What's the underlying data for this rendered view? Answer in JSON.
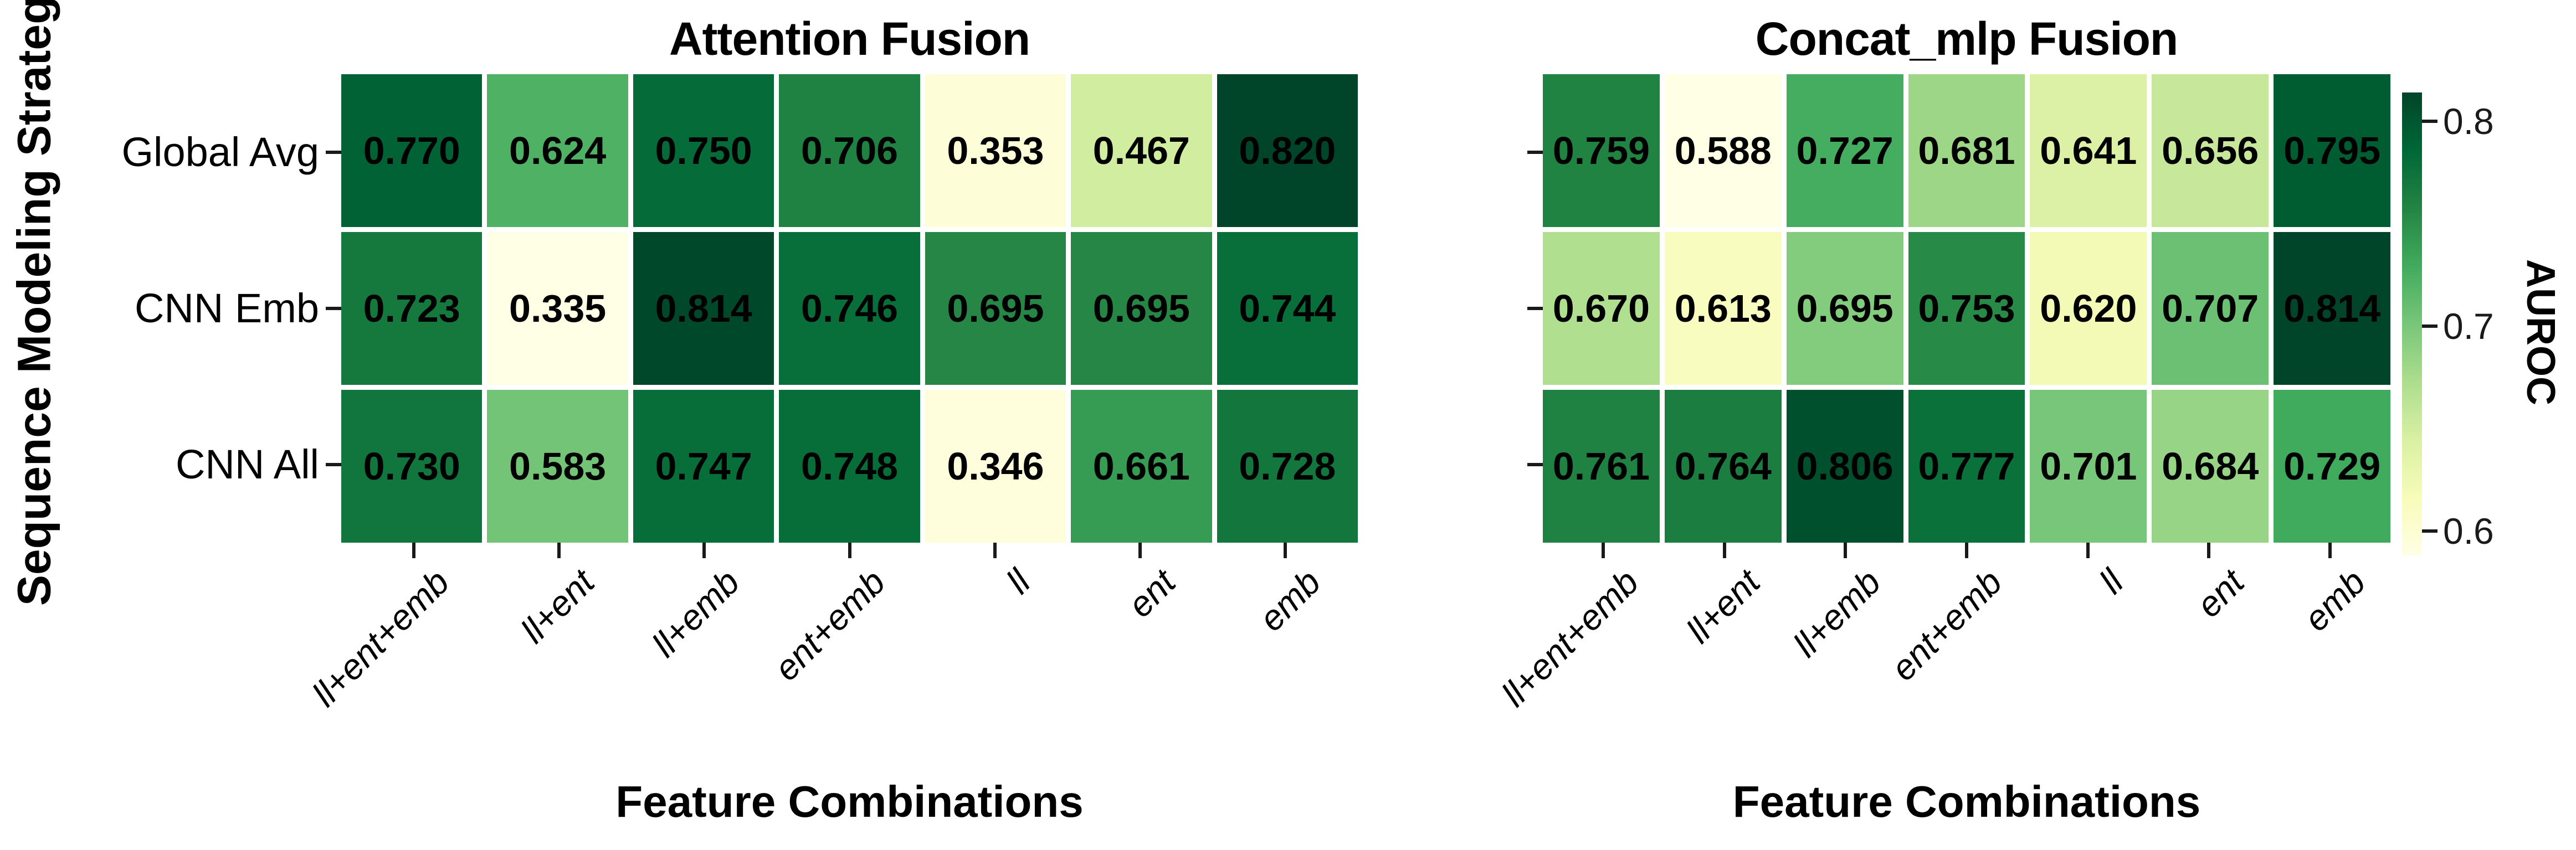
{
  "figure": {
    "ylabel": "Sequence Modeling Strategy",
    "colorbar": {
      "label": "AUROC",
      "ticks": [
        0.8,
        0.7,
        0.6
      ]
    }
  },
  "chart_data": [
    {
      "type": "heatmap",
      "title": "Attention Fusion",
      "xlabel": "Feature Combinations",
      "ylabel": "Sequence Modeling Strategy",
      "rows": [
        "Global Avg",
        "CNN Emb",
        "CNN All"
      ],
      "columns": [
        "ll+ent+emb",
        "ll+ent",
        "ll+emb",
        "ent+emb",
        "ll",
        "ent",
        "emb"
      ],
      "values": [
        [
          0.77,
          0.624,
          0.75,
          0.706,
          0.353,
          0.467,
          0.82
        ],
        [
          0.723,
          0.335,
          0.814,
          0.746,
          0.695,
          0.695,
          0.744
        ],
        [
          0.73,
          0.583,
          0.747,
          0.748,
          0.346,
          0.661,
          0.728
        ]
      ],
      "value_format": "0.000",
      "colormap": "YlGn",
      "normalization": "per-panel min-max",
      "gridlines": "white cell borders",
      "legend": "shared colorbar at right labeled AUROC"
    },
    {
      "type": "heatmap",
      "title": "Concat_mlp Fusion",
      "xlabel": "Feature Combinations",
      "rows": [
        "Global Avg",
        "CNN Emb",
        "CNN All"
      ],
      "columns": [
        "ll+ent+emb",
        "ll+ent",
        "ll+emb",
        "ent+emb",
        "ll",
        "ent",
        "emb"
      ],
      "values": [
        [
          0.759,
          0.588,
          0.727,
          0.681,
          0.641,
          0.656,
          0.795
        ],
        [
          0.67,
          0.613,
          0.695,
          0.753,
          0.62,
          0.707,
          0.814
        ],
        [
          0.761,
          0.764,
          0.806,
          0.777,
          0.701,
          0.684,
          0.729
        ]
      ],
      "value_format": "0.000",
      "colormap": "YlGn",
      "normalization": "per-panel min-max",
      "gridlines": "white cell borders",
      "legend": "shared colorbar at right labeled AUROC"
    }
  ]
}
